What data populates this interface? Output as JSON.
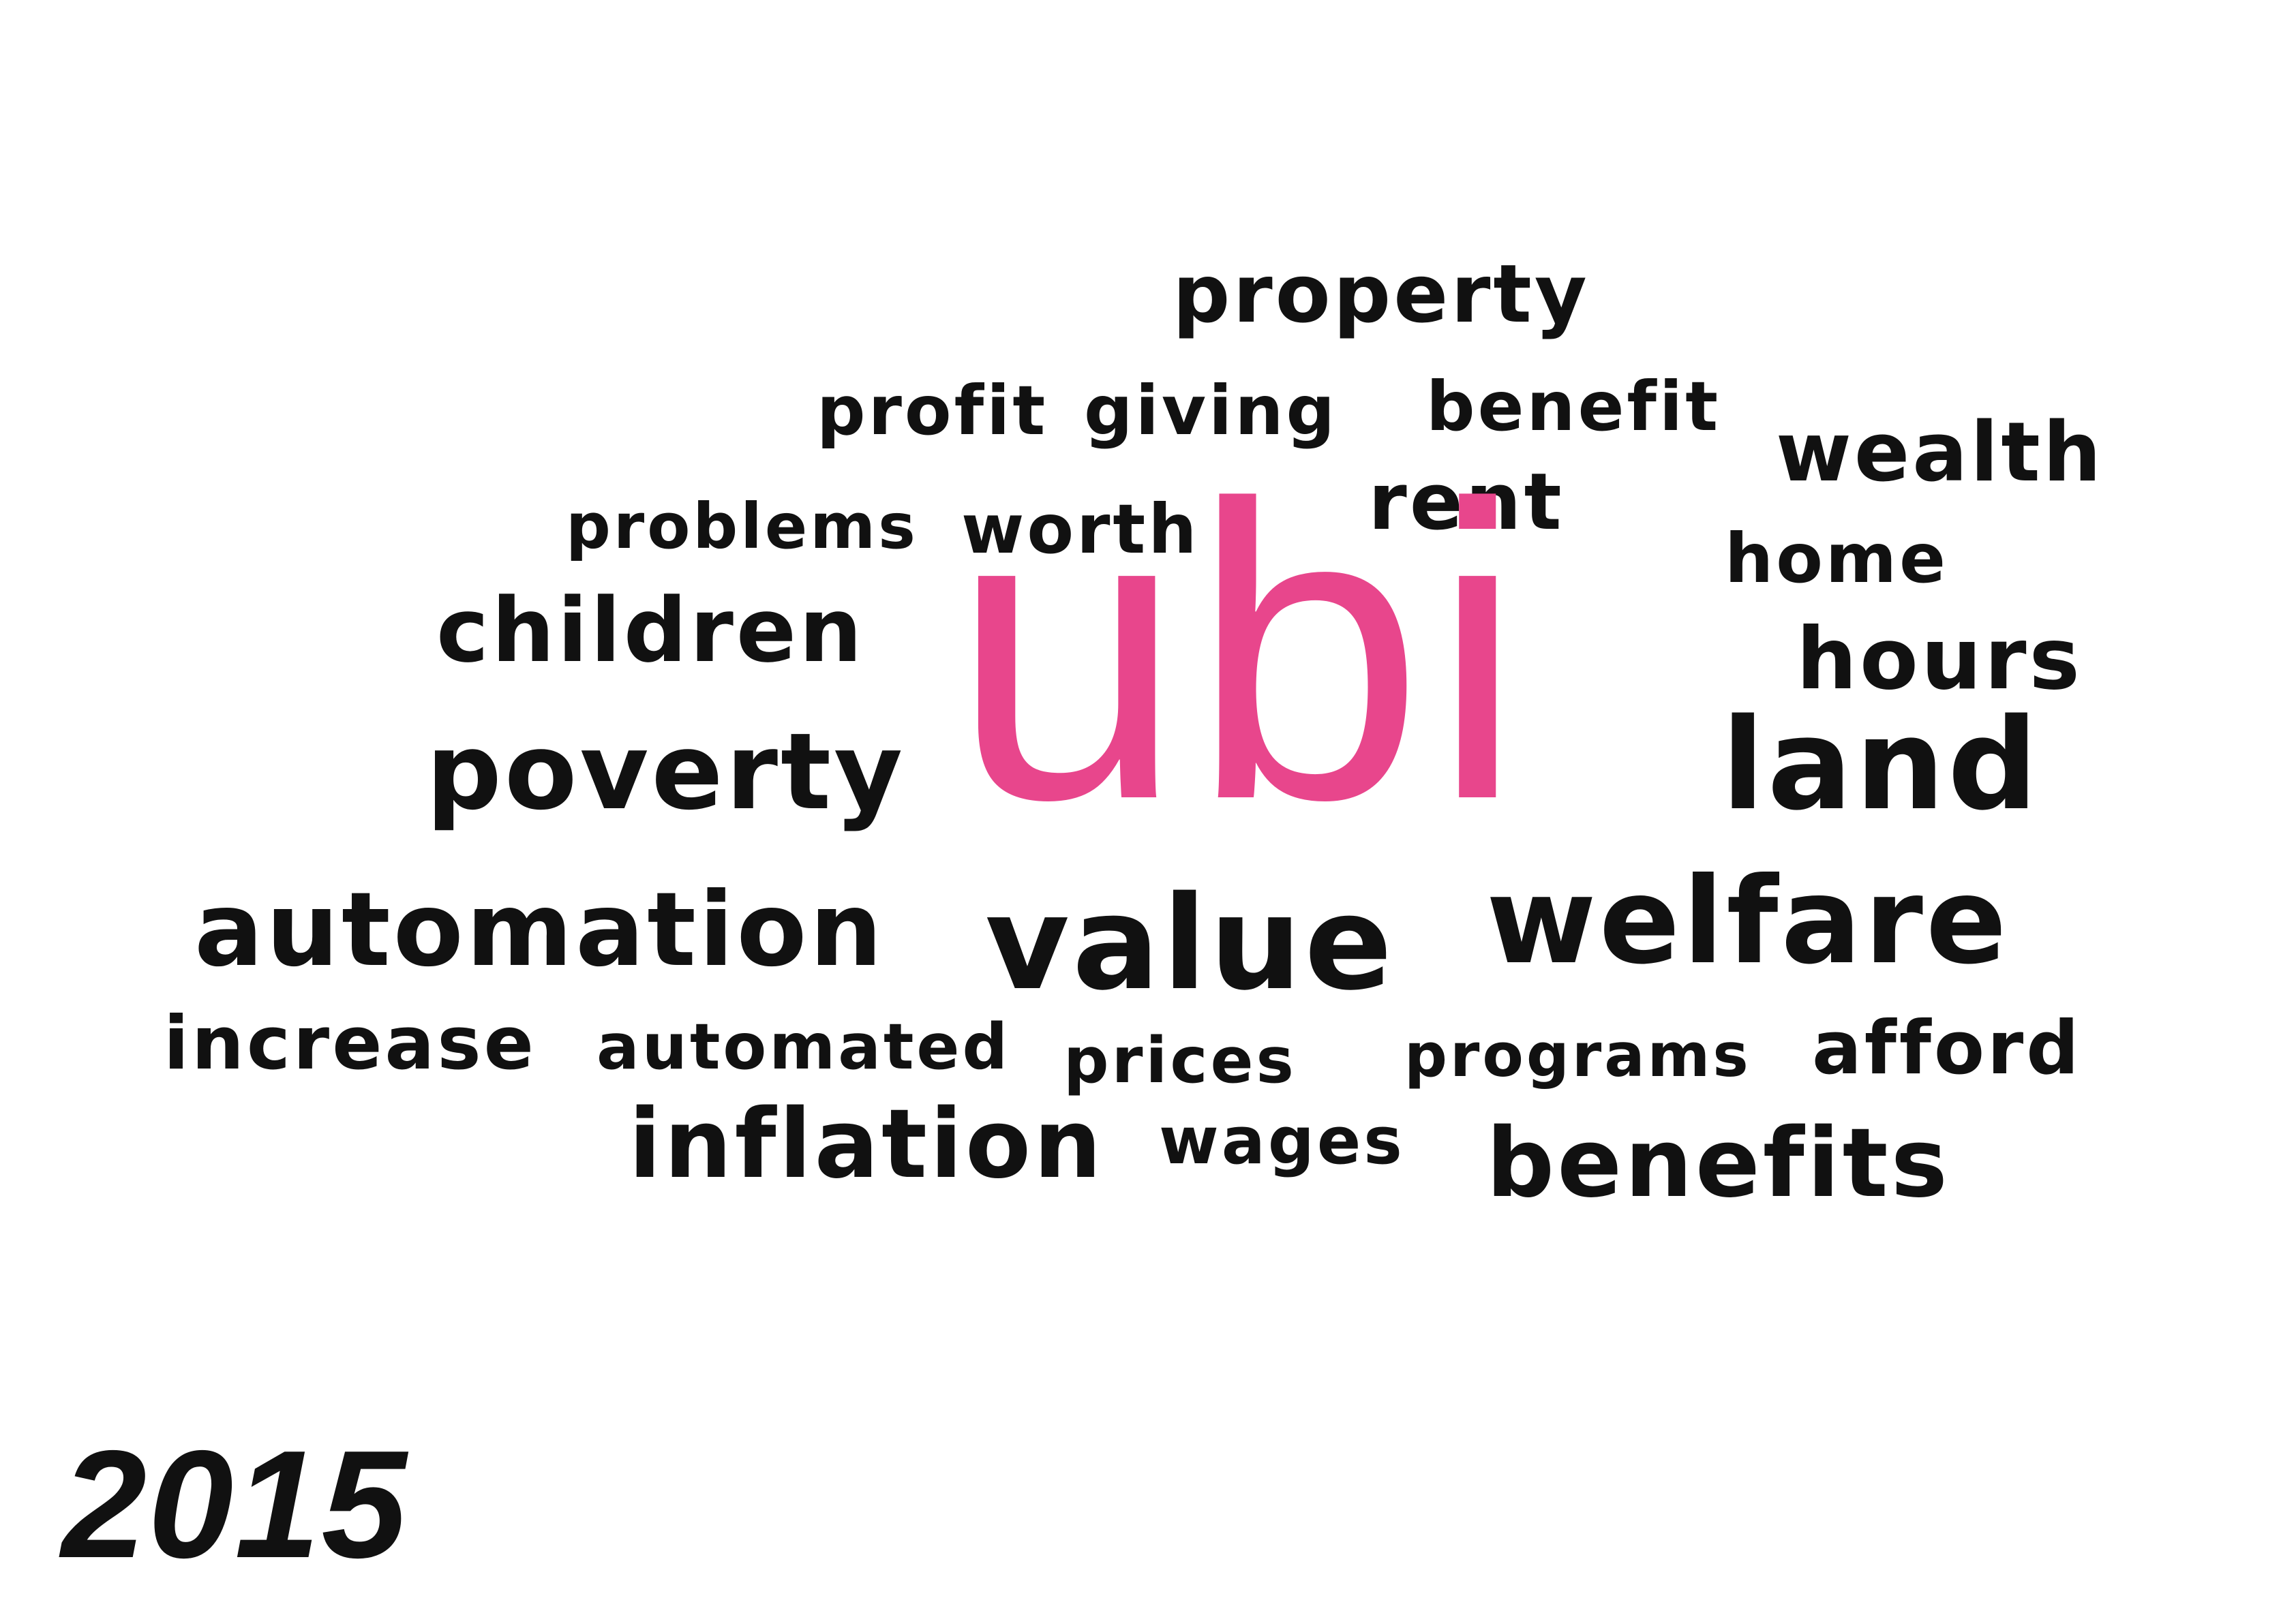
{
  "cloud": {
    "accent_color": "#e8468c",
    "text_color": "#111111",
    "words": [
      "property",
      "profit",
      "giving",
      "benefit",
      "wealth",
      "problems",
      "worth",
      "rent",
      "home",
      "ubi",
      "children",
      "hours",
      "poverty",
      "land",
      "automation",
      "value",
      "welfare",
      "increase",
      "automated",
      "prices",
      "programs",
      "afford",
      "inflation",
      "wages",
      "benefits"
    ]
  },
  "year_label": "2015"
}
